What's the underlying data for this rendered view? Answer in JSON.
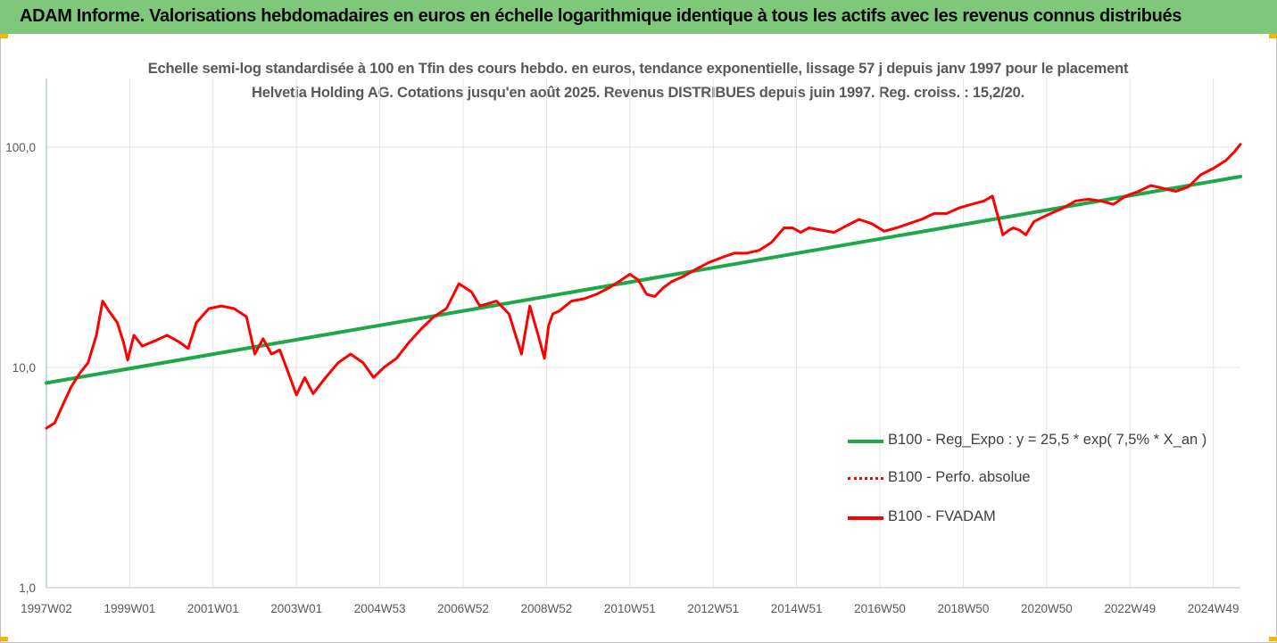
{
  "header": {
    "title": "ADAM Informe. Valorisations hebdomadaires en euros en échelle logarithmique identique à tous les actifs avec les revenus connus distribués"
  },
  "chart_data": {
    "type": "line",
    "title": "Echelle semi-log standardisée à 100 en Tfin des cours hebdo. en euros, tendance exponentielle, lissage 57 j depuis janv 1997 pour le placement Helvetia Holding AG. Cotations jusqu'en août 2025. Revenus DISTRIBUES depuis juin 1997. Reg. croiss. : 15,2/20.",
    "y_scale": "log",
    "ylim": [
      1,
      200
    ],
    "xlim": [
      1997.0,
      2025.65
    ],
    "y_ticks": [
      {
        "value": 1,
        "label": "1,0"
      },
      {
        "value": 10,
        "label": "10,0"
      },
      {
        "value": 100,
        "label": "100,0"
      }
    ],
    "x_ticks": [
      {
        "value": 1997.0,
        "label": "1997W02"
      },
      {
        "value": 1999.0,
        "label": "1999W01"
      },
      {
        "value": 2001.0,
        "label": "2001W01"
      },
      {
        "value": 2003.0,
        "label": "2003W01"
      },
      {
        "value": 2005.0,
        "label": "2004W53"
      },
      {
        "value": 2007.0,
        "label": "2006W52"
      },
      {
        "value": 2009.0,
        "label": "2008W52"
      },
      {
        "value": 2011.0,
        "label": "2010W51"
      },
      {
        "value": 2013.0,
        "label": "2012W51"
      },
      {
        "value": 2015.0,
        "label": "2014W51"
      },
      {
        "value": 2017.0,
        "label": "2016W50"
      },
      {
        "value": 2019.0,
        "label": "2018W50"
      },
      {
        "value": 2021.0,
        "label": "2020W50"
      },
      {
        "value": 2023.0,
        "label": "2022W49"
      },
      {
        "value": 2025.0,
        "label": "2024W49"
      }
    ],
    "grid": "vertical lines at ticks, horizontal lines at 10 and 100",
    "legend_position": "right-middle",
    "series": [
      {
        "name": "B100 - Reg_Expo : y = 25,5 * exp( 7,5% *  X_an )",
        "color": "#1ea84a",
        "style": "solid",
        "x": [
          1997.0,
          2025.65
        ],
        "values": [
          8.5,
          73.5
        ]
      },
      {
        "name": "B100 - Perfo. absolue",
        "color": "#ff0000",
        "style": "dotted",
        "x": [],
        "values": []
      },
      {
        "name": "B100 - FVADAM",
        "color": "#ff0000",
        "style": "solid",
        "x": [
          1997.0,
          1997.2,
          1997.4,
          1997.6,
          1997.8,
          1998.0,
          1998.2,
          1998.35,
          1998.5,
          1998.7,
          1998.85,
          1998.95,
          1999.1,
          1999.3,
          1999.6,
          1999.9,
          2000.2,
          2000.4,
          2000.6,
          2000.9,
          2001.2,
          2001.5,
          2001.8,
          2002.0,
          2002.2,
          2002.4,
          2002.6,
          2002.8,
          2003.0,
          2003.2,
          2003.4,
          2003.7,
          2004.0,
          2004.3,
          2004.6,
          2004.85,
          2005.1,
          2005.4,
          2005.7,
          2006.0,
          2006.3,
          2006.6,
          2006.9,
          2007.2,
          2007.4,
          2007.6,
          2007.8,
          2008.1,
          2008.4,
          2008.6,
          2008.8,
          2008.95,
          2009.05,
          2009.15,
          2009.3,
          2009.6,
          2009.9,
          2010.2,
          2010.5,
          2010.8,
          2011.0,
          2011.2,
          2011.4,
          2011.6,
          2011.8,
          2012.0,
          2012.3,
          2012.6,
          2012.9,
          2013.2,
          2013.5,
          2013.8,
          2014.1,
          2014.4,
          2014.7,
          2014.9,
          2015.1,
          2015.3,
          2015.6,
          2015.9,
          2016.2,
          2016.5,
          2016.8,
          2017.1,
          2017.4,
          2017.7,
          2018.0,
          2018.3,
          2018.6,
          2018.9,
          2019.2,
          2019.5,
          2019.7,
          2019.95,
          2020.1,
          2020.2,
          2020.35,
          2020.5,
          2020.7,
          2020.9,
          2021.1,
          2021.4,
          2021.7,
          2022.0,
          2022.3,
          2022.6,
          2022.9,
          2023.2,
          2023.5,
          2023.8,
          2024.1,
          2024.4,
          2024.7,
          2025.0,
          2025.3,
          2025.5,
          2025.65
        ],
        "values": [
          5.3,
          5.6,
          6.8,
          8.2,
          9.4,
          10.5,
          14.0,
          20.0,
          18.0,
          16.0,
          13.0,
          10.8,
          14.0,
          12.5,
          13.2,
          14.0,
          13.0,
          12.2,
          16.0,
          18.5,
          19.0,
          18.5,
          17.0,
          11.5,
          13.5,
          11.5,
          12.0,
          9.5,
          7.5,
          9.0,
          7.6,
          9.0,
          10.5,
          11.5,
          10.5,
          9.0,
          10.0,
          11.0,
          13.0,
          15.0,
          17.0,
          18.5,
          24.0,
          22.0,
          19.0,
          19.5,
          20.0,
          17.5,
          11.5,
          19.0,
          14.0,
          11.0,
          15.5,
          17.5,
          18.0,
          20.0,
          20.5,
          21.5,
          23.0,
          25.0,
          26.5,
          25.0,
          21.5,
          21.0,
          23.0,
          24.5,
          26.0,
          28.0,
          30.0,
          31.5,
          33.0,
          33.0,
          34.0,
          37.0,
          43.0,
          43.0,
          41.0,
          43.0,
          42.0,
          41.0,
          44.0,
          47.0,
          45.0,
          41.5,
          43.0,
          45.0,
          47.0,
          50.0,
          50.0,
          53.0,
          55.0,
          57.0,
          60.0,
          40.0,
          42.0,
          43.0,
          42.0,
          40.0,
          46.0,
          48.0,
          50.0,
          53.0,
          57.0,
          58.0,
          57.0,
          55.0,
          60.0,
          63.0,
          67.0,
          65.0,
          63.0,
          66.0,
          75.0,
          80.0,
          87.0,
          95.0,
          103.0
        ]
      }
    ]
  },
  "legend": {
    "items": [
      {
        "label": "B100 - Reg_Expo : y = 25,5 * exp( 7,5% *  X_an )"
      },
      {
        "label": "B100 - Perfo. absolue"
      },
      {
        "label": "B100 - FVADAM"
      }
    ]
  }
}
